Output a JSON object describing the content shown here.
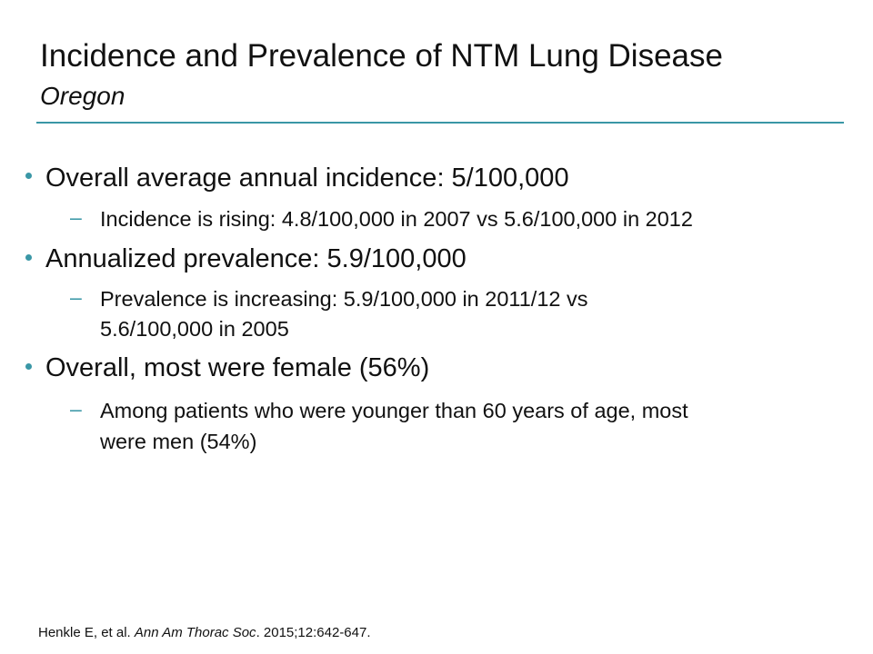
{
  "slide": {
    "title": "Incidence and Prevalence of NTM Lung Disease",
    "subtitle": "Oregon",
    "accent_color": "#3a97a6",
    "bullets": [
      {
        "text": "Overall average annual incidence: 5/100,000",
        "sub": [
          "Incidence is rising: 4.8/100,000 in 2007 vs 5.6/100,000 in 2012"
        ]
      },
      {
        "text": "Annualized prevalence: 5.9/100,000",
        "sub": [
          "Prevalence is increasing: 5.9/100,000 in 2011/12 vs",
          "5.6/100,000 in 2005"
        ]
      },
      {
        "text": "Overall, most were female (56%)",
        "sub": [
          "Among patients who were younger than 60 years of age, most",
          "were men (54%)"
        ]
      }
    ],
    "reference": {
      "authors": "Henkle E, et al. ",
      "journal": "Ann Am Thorac Soc",
      "rest": ". 2015;12:642-647."
    }
  }
}
